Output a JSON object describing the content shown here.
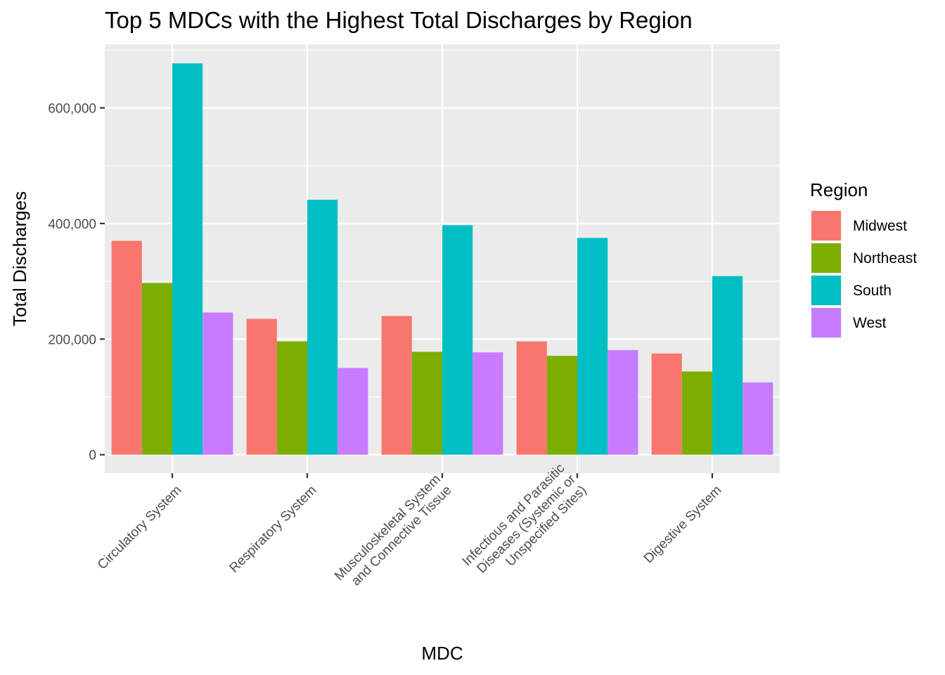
{
  "chart_data": {
    "type": "bar",
    "title": "Top 5 MDCs with the Highest Total Discharges by Region",
    "xlabel": "MDC",
    "ylabel": "Total Discharges",
    "categories": [
      [
        "Circulatory System"
      ],
      [
        "Respiratory System"
      ],
      [
        "Musculoskeletal System",
        "and Connective Tissue"
      ],
      [
        "Infectious and Parasitic",
        "Diseases (Systemic or",
        "Unspecified Sites)"
      ],
      [
        "Digestive System"
      ]
    ],
    "series": [
      {
        "name": "Midwest",
        "color": "#F8766D",
        "values": [
          370000,
          235000,
          240000,
          196000,
          175000
        ]
      },
      {
        "name": "Northeast",
        "color": "#7CAE00",
        "values": [
          297000,
          196000,
          178000,
          171000,
          144000
        ]
      },
      {
        "name": "South",
        "color": "#00BFC4",
        "values": [
          677000,
          441000,
          397000,
          375000,
          309000
        ]
      },
      {
        "name": "West",
        "color": "#C77CFF",
        "values": [
          246000,
          150000,
          177000,
          181000,
          125000
        ]
      }
    ],
    "ylim": [
      -32000,
      710000
    ],
    "yticks": [
      0,
      200000,
      400000,
      600000
    ],
    "ytick_labels": [
      "0",
      "200,000",
      "400,000",
      "600,000"
    ],
    "grid": true,
    "legend": {
      "title": "Region",
      "position": "right"
    },
    "panel_color": "#EBEBEB"
  }
}
